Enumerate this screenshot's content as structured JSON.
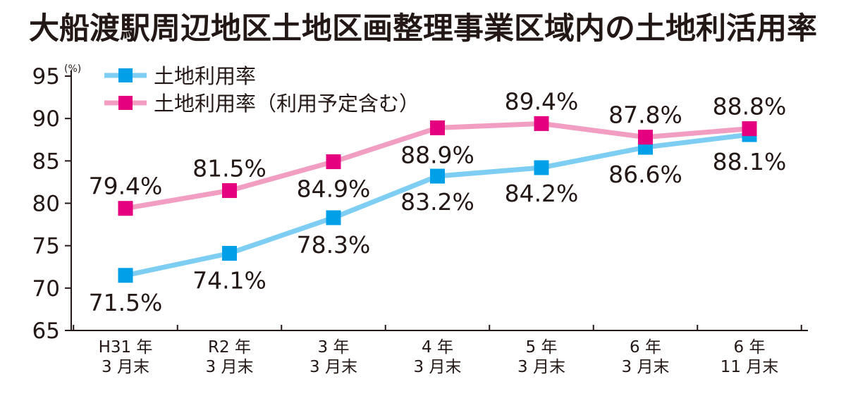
{
  "chart_data": {
    "type": "line",
    "title": "大船渡駅周辺地区土地区画整理事業区域内の土地利活用率",
    "ylabel": "(%)",
    "ylim": [
      65,
      95
    ],
    "yticks": [
      65,
      70,
      75,
      80,
      85,
      90,
      95
    ],
    "categories": [
      [
        "H31 年",
        "3 月末"
      ],
      [
        "R2 年",
        "3 月末"
      ],
      [
        "3 年",
        "3 月末"
      ],
      [
        "4 年",
        "3 月末"
      ],
      [
        "5 年",
        "3 月末"
      ],
      [
        "6 年",
        "3 月末"
      ],
      [
        "6 年",
        "11 月末"
      ]
    ],
    "series": [
      {
        "name": "土地利用率",
        "color": "#00a0e9",
        "line_color": "#7ecef4",
        "values": [
          71.5,
          74.1,
          78.3,
          83.2,
          84.2,
          86.6,
          88.1
        ],
        "labels": [
          "71.5%",
          "74.1%",
          "78.3%",
          "83.2%",
          "84.2%",
          "86.6%",
          "88.1%"
        ]
      },
      {
        "name": "土地利用率（利用予定含む）",
        "color": "#e4007f",
        "line_color": "#f19ec2",
        "values": [
          79.4,
          81.5,
          84.9,
          88.9,
          89.4,
          87.8,
          88.8
        ],
        "labels": [
          "79.4%",
          "81.5%",
          "84.9%",
          "88.9%",
          "89.4%",
          "87.8%",
          "88.8%"
        ]
      }
    ],
    "legend": "top-left",
    "grid": false
  }
}
